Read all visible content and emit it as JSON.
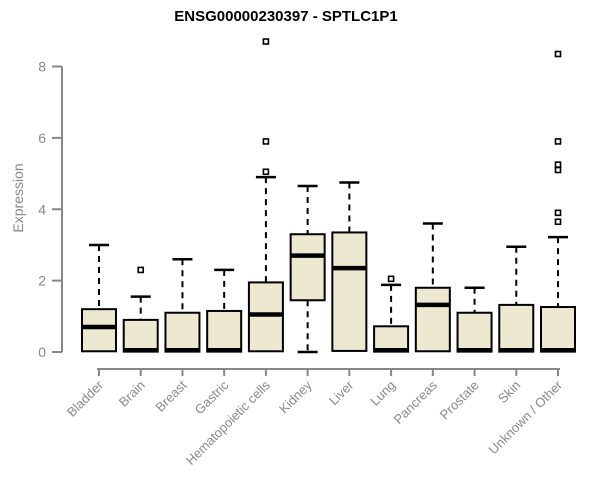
{
  "chart_data": {
    "type": "boxplot",
    "title": "ENSG00000230397 - SPTLC1P1",
    "ylabel": "Expression",
    "xlabel": "",
    "ylim": [
      0,
      8.9
    ],
    "yticks": [
      0,
      2,
      4,
      6,
      8
    ],
    "grid": false,
    "legend": "none",
    "categories": [
      "Bladder",
      "Brain",
      "Breast",
      "Gastric",
      "Hematopoietic cells",
      "Kidney",
      "Liver",
      "Lung",
      "Pancreas",
      "Prostate",
      "Skin",
      "Unknown / Other"
    ],
    "series": [
      {
        "name": "Bladder",
        "whisker_low": 0,
        "q1": 0.02,
        "median": 0.7,
        "q3": 1.2,
        "whisker_high": 3.0,
        "outliers": []
      },
      {
        "name": "Brain",
        "whisker_low": 0,
        "q1": 0.01,
        "median": 0.05,
        "q3": 0.9,
        "whisker_high": 1.55,
        "outliers": [
          2.3
        ]
      },
      {
        "name": "Breast",
        "whisker_low": 0,
        "q1": 0.01,
        "median": 0.05,
        "q3": 1.1,
        "whisker_high": 2.6,
        "outliers": []
      },
      {
        "name": "Gastric",
        "whisker_low": 0,
        "q1": 0.01,
        "median": 0.05,
        "q3": 1.15,
        "whisker_high": 2.3,
        "outliers": []
      },
      {
        "name": "Hematopoietic cells",
        "whisker_low": 0,
        "q1": 0.02,
        "median": 1.05,
        "q3": 1.95,
        "whisker_high": 4.9,
        "outliers": [
          8.7,
          5.9,
          5.05
        ]
      },
      {
        "name": "Kidney",
        "whisker_low": 0,
        "q1": 1.45,
        "median": 2.7,
        "q3": 3.3,
        "whisker_high": 4.65,
        "outliers": []
      },
      {
        "name": "Liver",
        "whisker_low": 0,
        "q1": 0.03,
        "median": 2.35,
        "q3": 3.35,
        "whisker_high": 4.75,
        "outliers": []
      },
      {
        "name": "Lung",
        "whisker_low": 0,
        "q1": 0.01,
        "median": 0.05,
        "q3": 0.72,
        "whisker_high": 1.88,
        "outliers": [
          2.05
        ]
      },
      {
        "name": "Pancreas",
        "whisker_low": 0,
        "q1": 0.02,
        "median": 1.32,
        "q3": 1.8,
        "whisker_high": 3.6,
        "outliers": []
      },
      {
        "name": "Prostate",
        "whisker_low": 0,
        "q1": 0.01,
        "median": 0.05,
        "q3": 1.1,
        "whisker_high": 1.8,
        "outliers": []
      },
      {
        "name": "Skin",
        "whisker_low": 0,
        "q1": 0.01,
        "median": 0.05,
        "q3": 1.32,
        "whisker_high": 2.95,
        "outliers": []
      },
      {
        "name": "Unknown / Other",
        "whisker_low": 0,
        "q1": 0.01,
        "median": 0.05,
        "q3": 1.26,
        "whisker_high": 3.22,
        "outliers": [
          8.35,
          5.9,
          5.25,
          5.1,
          3.9,
          3.65
        ]
      }
    ],
    "colors": {
      "box_fill": "#EDE8D0",
      "box_border": "#000000",
      "median": "#000000",
      "whisker": "#000000",
      "outlier_fill": "#ffffff",
      "axis": "#878787",
      "tick_label": "#8a8a8a",
      "title": "#000000",
      "background": "#ffffff"
    }
  }
}
